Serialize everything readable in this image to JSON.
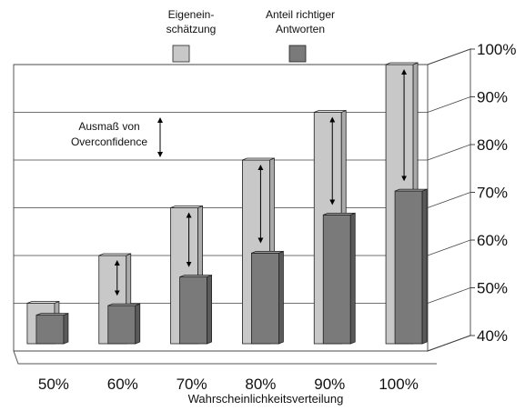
{
  "chart_data": {
    "type": "bar",
    "xlabel": "Wahrscheinlichkeitsverteilung",
    "ylabel": "",
    "ylim": [
      40,
      100
    ],
    "yticks": [
      "40%",
      "50%",
      "60%",
      "70%",
      "80%",
      "90%",
      "100%"
    ],
    "ytick_values": [
      40,
      50,
      60,
      70,
      80,
      90,
      100
    ],
    "categories": [
      "50%",
      "60%",
      "70%",
      "80%",
      "90%",
      "100%"
    ],
    "series": [
      {
        "name": "Eigeneinschätzung",
        "legend_lines": [
          "Eigenein-",
          "schätzung"
        ],
        "values": [
          50,
          60,
          70,
          80,
          90,
          100
        ],
        "color": "#c8c8c8"
      },
      {
        "name": "Anteil richtiger Antworten",
        "legend_lines": [
          "Anteil richtiger",
          "Antworten"
        ],
        "values": [
          49,
          51,
          57,
          62,
          70,
          75
        ],
        "color": "#7a7a7a"
      }
    ],
    "annotation": {
      "lines": [
        "Ausmaß von",
        "Overconfidence"
      ]
    },
    "grid": true,
    "legend_position": "top"
  }
}
